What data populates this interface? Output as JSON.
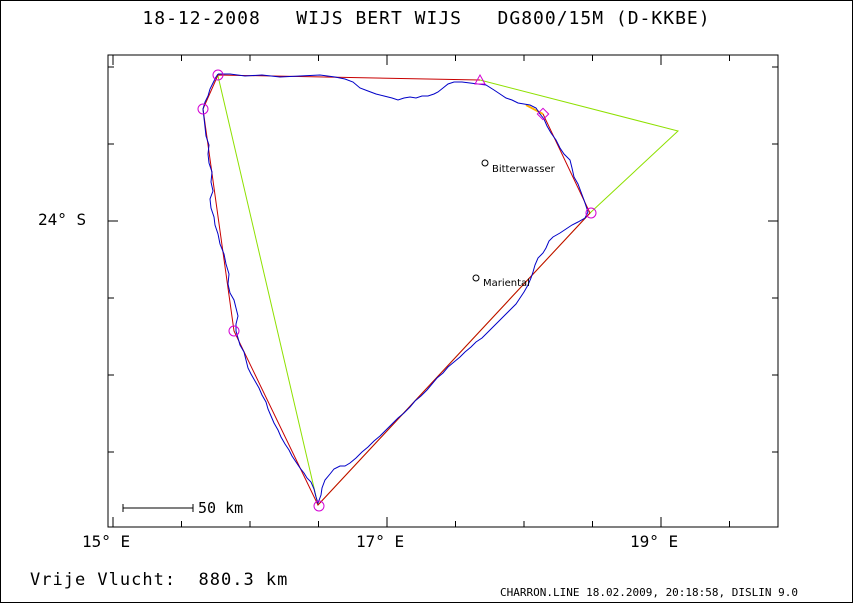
{
  "header": {
    "title": "18-12-2008   WIJS BERT WIJS   DG800/15M (D-KKBE)"
  },
  "map": {
    "lat_label": "24° S",
    "lon_labels": [
      "15° E",
      "17° E",
      "19° E"
    ],
    "places": [
      {
        "name": "Bitterwasser"
      },
      {
        "name": "Mariental"
      }
    ],
    "scale_label": "50 km",
    "colors": {
      "track": "#0000c8",
      "task": "#c80000",
      "legs": "#8ee000",
      "marker": "#d400d4",
      "leg_segment": "#ffb000"
    }
  },
  "footer": {
    "distance": "Vrije Vlucht:  880.3 km",
    "credits": "CHARRON.LINE 18.02.2009, 20:18:58, DISLIN 9.0"
  }
}
